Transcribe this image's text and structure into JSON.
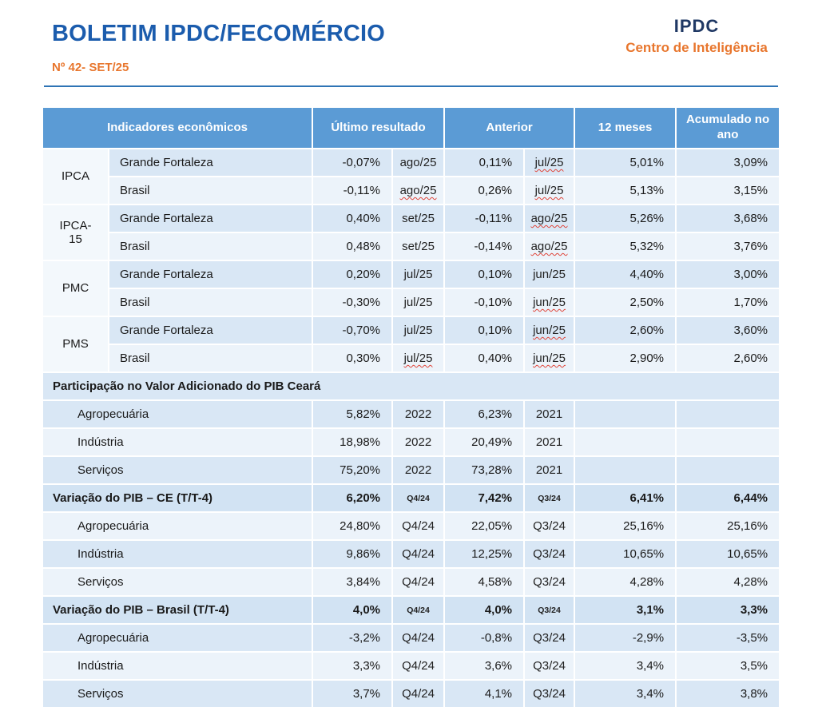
{
  "header": {
    "title": "BOLETIM IPDC/FECOMÉRCIO",
    "issue": "Nº 42- SET/25",
    "logo_text": "IPDC",
    "logo_subtitle": "Centro de Inteligência"
  },
  "colors": {
    "title_blue": "#1b5cad",
    "accent_orange": "#e8762d",
    "logo_navy": "#1f3864",
    "table_header_bg": "#5b9bd5",
    "row_band_dark": "#d9e7f5",
    "row_band_light": "#ecf3fa",
    "row_total_bg": "#d2e3f3",
    "divider_blue": "#2e74b5",
    "squiggle_red": "#e0453a"
  },
  "table": {
    "columns": [
      "Indicadores econômicos",
      "Último resultado",
      "Anterior",
      "12 meses",
      "Acumulado no ano"
    ],
    "rows": [
      {
        "type": "ind",
        "group": "IPCA",
        "span": 2,
        "label": "Grande Fortaleza",
        "v1": "-0,07%",
        "r1": "ago/25",
        "s1": false,
        "v2": "0,11%",
        "r2": "jul/25",
        "s2": true,
        "m12": "5,01%",
        "acc": "3,09%"
      },
      {
        "type": "ind",
        "label": "Brasil",
        "v1": "-0,11%",
        "r1": "ago/25",
        "s1": true,
        "v2": "0,26%",
        "r2": "jul/25",
        "s2": true,
        "m12": "5,13%",
        "acc": "3,15%"
      },
      {
        "type": "ind",
        "group": "IPCA-\n15",
        "span": 2,
        "label": "Grande Fortaleza",
        "v1": "0,40%",
        "r1": "set/25",
        "s1": false,
        "v2": "-0,11%",
        "r2": "ago/25",
        "s2": true,
        "m12": "5,26%",
        "acc": "3,68%"
      },
      {
        "type": "ind",
        "label": "Brasil",
        "v1": "0,48%",
        "r1": "set/25",
        "s1": false,
        "v2": "-0,14%",
        "r2": "ago/25",
        "s2": true,
        "m12": "5,32%",
        "acc": "3,76%"
      },
      {
        "type": "ind",
        "group": "PMC",
        "span": 2,
        "label": "Grande Fortaleza",
        "v1": "0,20%",
        "r1": "jul/25",
        "s1": false,
        "v2": "0,10%",
        "r2": "jun/25",
        "s2": false,
        "m12": "4,40%",
        "acc": "3,00%"
      },
      {
        "type": "ind",
        "label": "Brasil",
        "v1": "-0,30%",
        "r1": "jul/25",
        "s1": false,
        "v2": "-0,10%",
        "r2": "jun/25",
        "s2": true,
        "m12": "2,50%",
        "acc": "1,70%"
      },
      {
        "type": "ind",
        "group": "PMS",
        "span": 2,
        "label": "Grande Fortaleza",
        "v1": "-0,70%",
        "r1": "jul/25",
        "s1": false,
        "v2": "0,10%",
        "r2": "jun/25",
        "s2": true,
        "m12": "2,60%",
        "acc": "3,60%"
      },
      {
        "type": "ind",
        "label": "Brasil",
        "v1": "0,30%",
        "r1": "jul/25",
        "s1": true,
        "v2": "0,40%",
        "r2": "jun/25",
        "s2": true,
        "m12": "2,90%",
        "acc": "2,60%"
      },
      {
        "type": "section",
        "label": "Participação no Valor Adicionado do PIB Ceará"
      },
      {
        "type": "sub",
        "label": "Agropecuária",
        "v1": "5,82%",
        "r1": "2022",
        "s1": false,
        "v2": "6,23%",
        "r2": "2021",
        "s2": false,
        "m12": "",
        "acc": ""
      },
      {
        "type": "sub",
        "label": "Indústria",
        "v1": "18,98%",
        "r1": "2022",
        "s1": false,
        "v2": "20,49%",
        "r2": "2021",
        "s2": false,
        "m12": "",
        "acc": ""
      },
      {
        "type": "sub",
        "label": "Serviços",
        "v1": "75,20%",
        "r1": "2022",
        "s1": false,
        "v2": "73,28%",
        "r2": "2021",
        "s2": false,
        "m12": "",
        "acc": ""
      },
      {
        "type": "total",
        "label": "Variação do PIB – CE (T/T-4)",
        "v1": "6,20%",
        "r1": "Q4/24",
        "s1": false,
        "v2": "7,42%",
        "r2": "Q3/24",
        "s2": false,
        "m12": "6,41%",
        "acc": "6,44%"
      },
      {
        "type": "sub",
        "label": "Agropecuária",
        "v1": "24,80%",
        "r1": "Q4/24",
        "s1": false,
        "v2": "22,05%",
        "r2": "Q3/24",
        "s2": false,
        "m12": "25,16%",
        "acc": "25,16%"
      },
      {
        "type": "sub",
        "label": "Indústria",
        "v1": "9,86%",
        "r1": "Q4/24",
        "s1": false,
        "v2": "12,25%",
        "r2": "Q3/24",
        "s2": false,
        "m12": "10,65%",
        "acc": "10,65%"
      },
      {
        "type": "sub",
        "label": "Serviços",
        "v1": "3,84%",
        "r1": "Q4/24",
        "s1": false,
        "v2": "4,58%",
        "r2": "Q3/24",
        "s2": false,
        "m12": "4,28%",
        "acc": "4,28%"
      },
      {
        "type": "total",
        "label": "Variação do PIB – Brasil (T/T-4)",
        "v1": "4,0%",
        "r1": "Q4/24",
        "s1": false,
        "v2": "4,0%",
        "r2": "Q3/24",
        "s2": false,
        "m12": "3,1%",
        "acc": "3,3%"
      },
      {
        "type": "sub",
        "label": "Agropecuária",
        "v1": "-3,2%",
        "r1": "Q4/24",
        "s1": false,
        "v2": "-0,8%",
        "r2": "Q3/24",
        "s2": false,
        "m12": "-2,9%",
        "acc": "-3,5%"
      },
      {
        "type": "sub",
        "label": "Indústria",
        "v1": "3,3%",
        "r1": "Q4/24",
        "s1": false,
        "v2": "3,6%",
        "r2": "Q3/24",
        "s2": false,
        "m12": "3,4%",
        "acc": "3,5%"
      },
      {
        "type": "sub",
        "label": "Serviços",
        "v1": "3,7%",
        "r1": "Q4/24",
        "s1": false,
        "v2": "4,1%",
        "r2": "Q3/24",
        "s2": false,
        "m12": "3,4%",
        "acc": "3,8%"
      }
    ]
  }
}
